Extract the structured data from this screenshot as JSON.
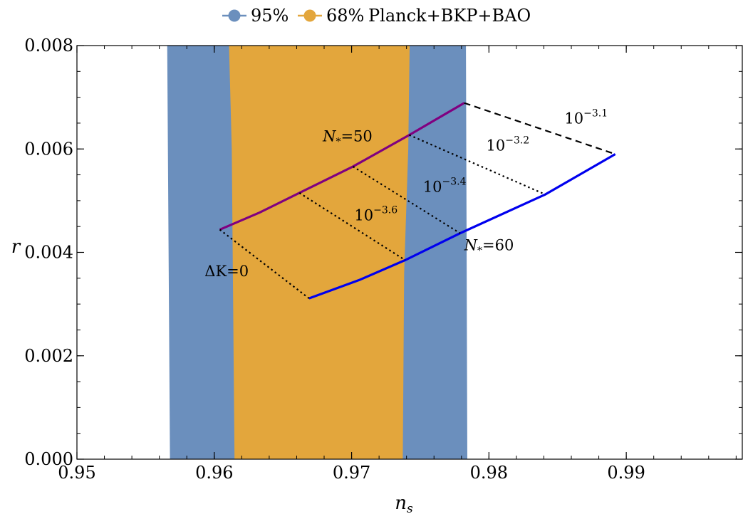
{
  "chart_data": {
    "type": "line",
    "xlabel": "n_s",
    "ylabel": "r",
    "xlim": [
      0.95,
      0.9985
    ],
    "ylim": [
      0,
      0.008
    ],
    "x_ticks": [
      0.95,
      0.96,
      0.97,
      0.98,
      0.99
    ],
    "x_tick_labels": [
      "0.95",
      "0.96",
      "0.97",
      "0.98",
      "0.99"
    ],
    "y_ticks": [
      0,
      0.002,
      0.004,
      0.006,
      0.008
    ],
    "y_tick_labels": [
      "0.000",
      "0.002",
      "0.004",
      "0.006",
      "0.008"
    ],
    "grid": false,
    "legend": {
      "placement": "top",
      "entries": [
        {
          "label": "95%",
          "color": "#6b8fbd"
        },
        {
          "label": "68%",
          "color": "#e3a63c"
        }
      ],
      "caption": "Planck+BKP+BAO"
    },
    "regions": [
      {
        "name": "95%",
        "color": "#6b8fbd",
        "points": [
          [
            0.9566,
            0.008
          ],
          [
            0.9568,
            0
          ],
          [
            0.9784,
            0
          ],
          [
            0.9783,
            0.008
          ]
        ]
      },
      {
        "name": "68%",
        "color": "#e3a63c",
        "points": [
          [
            0.9611,
            0.008
          ],
          [
            0.9613,
            0.006
          ],
          [
            0.9615,
            0
          ],
          [
            0.9737,
            0
          ],
          [
            0.9738,
            0.0036
          ],
          [
            0.9741,
            0.006
          ],
          [
            0.9742,
            0.008
          ]
        ]
      }
    ],
    "series": [
      {
        "name": "N_*=50",
        "color": "#800080",
        "style": "solid",
        "points": [
          [
            0.9604,
            0.00444
          ],
          [
            0.9633,
            0.00477
          ],
          [
            0.9662,
            0.00515
          ],
          [
            0.9701,
            0.00566
          ],
          [
            0.9742,
            0.00627
          ],
          [
            0.9782,
            0.00689
          ]
        ]
      },
      {
        "name": "N_*=60",
        "color": "#0000ee",
        "style": "solid",
        "points": [
          [
            0.9669,
            0.00311
          ],
          [
            0.9706,
            0.00347
          ],
          [
            0.9739,
            0.00385
          ],
          [
            0.9779,
            0.00437
          ],
          [
            0.9841,
            0.00512
          ],
          [
            0.9892,
            0.0059
          ]
        ]
      },
      {
        "name": "ΔK=0",
        "color": "#000000",
        "style": "dotted",
        "points": [
          [
            0.9604,
            0.00444
          ],
          [
            0.9669,
            0.00311
          ]
        ]
      },
      {
        "name": "10^-3.6",
        "color": "#000000",
        "style": "dotted",
        "points": [
          [
            0.9662,
            0.00515
          ],
          [
            0.9739,
            0.00385
          ]
        ]
      },
      {
        "name": "10^-3.4",
        "color": "#000000",
        "style": "dotted",
        "points": [
          [
            0.9701,
            0.00566
          ],
          [
            0.9779,
            0.00437
          ]
        ]
      },
      {
        "name": "10^-3.2",
        "color": "#000000",
        "style": "dotted",
        "points": [
          [
            0.9742,
            0.00627
          ],
          [
            0.9841,
            0.00512
          ]
        ]
      },
      {
        "name": "10^-3.1",
        "color": "#000000",
        "style": "dashed",
        "points": [
          [
            0.9782,
            0.00689
          ],
          [
            0.9892,
            0.0059
          ]
        ]
      }
    ],
    "annotations": [
      {
        "base": "N",
        "sub": "*",
        "tail": "=50",
        "x": 0.9679,
        "y": 0.00615
      },
      {
        "base": "N",
        "sub": "*",
        "tail": "=60",
        "x": 0.9782,
        "y": 0.00404
      },
      {
        "base": "ΔK=0",
        "sup": "",
        "x": 0.9593,
        "y": 0.00354
      },
      {
        "base": "10",
        "sup": "−3.1",
        "x": 0.9855,
        "y": 0.00649
      },
      {
        "base": "10",
        "sup": "−3.2",
        "x": 0.9798,
        "y": 0.00597
      },
      {
        "base": "10",
        "sup": "−3.4",
        "x": 0.9752,
        "y": 0.00517
      },
      {
        "base": "10",
        "sup": "−3.6",
        "x": 0.9702,
        "y": 0.00462
      }
    ]
  }
}
